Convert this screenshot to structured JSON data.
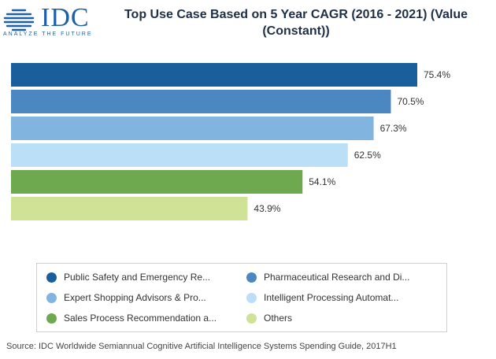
{
  "logo": {
    "text": "IDC",
    "tagline": "ANALYZE THE FUTURE",
    "color": "#1f5fa8"
  },
  "title": "Top Use Case Based on 5 Year CAGR (2016 - 2021) (Value (Constant))",
  "source": "Source: IDC Worldwide Semiannual Cognitive Artificial Intelligence Systems Spending Guide, 2017H1",
  "chart_data": {
    "type": "bar",
    "orientation": "horizontal",
    "title": "Top Use Case Based on 5 Year CAGR (2016 - 2021) (Value (Constant))",
    "xlim": [
      0,
      75.4
    ],
    "grid": false,
    "legend_position": "bottom",
    "series": [
      {
        "name": "Public Safety and Emergency Re...",
        "value": 75.4,
        "label": "75.4%",
        "color": "#1b5e9c"
      },
      {
        "name": "Pharmaceutical Research and Di...",
        "value": 70.5,
        "label": "70.5%",
        "color": "#4b88c2"
      },
      {
        "name": "Expert Shopping Advisors & Pro...",
        "value": 67.3,
        "label": "67.3%",
        "color": "#82b4e0"
      },
      {
        "name": "Intelligent Processing Automat...",
        "value": 62.5,
        "label": "62.5%",
        "color": "#bcdff8"
      },
      {
        "name": "Sales Process Recommendation a...",
        "value": 54.1,
        "label": "54.1%",
        "color": "#6ea84f"
      },
      {
        "name": "Others",
        "value": 43.9,
        "label": "43.9%",
        "color": "#cfe295"
      }
    ]
  }
}
